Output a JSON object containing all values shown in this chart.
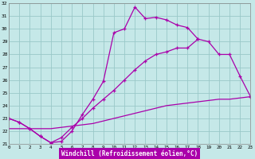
{
  "xlabel": "Windchill (Refroidissement éolien,°C)",
  "xlim": [
    0,
    23
  ],
  "ylim": [
    21,
    32
  ],
  "xtick_vals": [
    0,
    1,
    2,
    3,
    4,
    5,
    6,
    7,
    8,
    9,
    10,
    11,
    12,
    13,
    14,
    15,
    16,
    17,
    18,
    19,
    20,
    21,
    22,
    23
  ],
  "ytick_vals": [
    21,
    22,
    23,
    24,
    25,
    26,
    27,
    28,
    29,
    30,
    31,
    32
  ],
  "line_color": "#aa00aa",
  "bg_color": "#c5e8e8",
  "grid_color": "#99c8c8",
  "line1_x": [
    0,
    1,
    2,
    3,
    4,
    5,
    6,
    7,
    8,
    9,
    10,
    11,
    12,
    13,
    14,
    15,
    16,
    17,
    18
  ],
  "line1_y": [
    23.0,
    22.7,
    22.2,
    21.6,
    21.1,
    21.2,
    22.0,
    23.3,
    24.5,
    25.9,
    29.7,
    30.0,
    31.7,
    30.8,
    30.9,
    30.7,
    30.3,
    30.1,
    29.2
  ],
  "line2_x": [
    0,
    1,
    2,
    3,
    4,
    5,
    6,
    7,
    8,
    9,
    10,
    11,
    12,
    13,
    14,
    15,
    16,
    17,
    18,
    19,
    20,
    21,
    22,
    23
  ],
  "line2_y": [
    23.0,
    22.7,
    22.2,
    21.6,
    21.1,
    21.5,
    22.3,
    23.0,
    23.8,
    24.5,
    25.2,
    26.0,
    26.8,
    27.5,
    28.0,
    28.2,
    28.5,
    28.5,
    29.2,
    29.0,
    28.0,
    28.0,
    26.3,
    24.7
  ],
  "line3_x": [
    0,
    1,
    2,
    3,
    4,
    5,
    6,
    7,
    8,
    9,
    10,
    11,
    12,
    13,
    14,
    15,
    16,
    17,
    18,
    19,
    20,
    21,
    22,
    23
  ],
  "line3_y": [
    22.2,
    22.2,
    22.2,
    22.2,
    22.2,
    22.3,
    22.4,
    22.5,
    22.6,
    22.8,
    23.0,
    23.2,
    23.4,
    23.6,
    23.8,
    24.0,
    24.1,
    24.2,
    24.3,
    24.4,
    24.5,
    24.5,
    24.6,
    24.7
  ]
}
